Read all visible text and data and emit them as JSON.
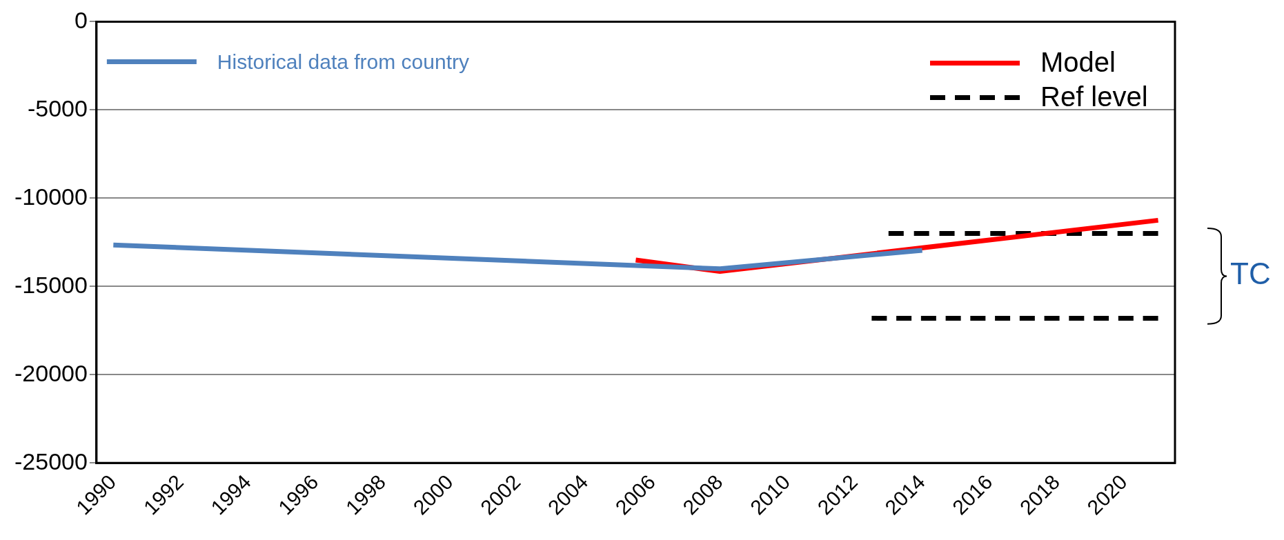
{
  "chart_data": {
    "type": "line",
    "xlim": [
      1989.5,
      2021.5
    ],
    "xticks": [
      1990,
      1992,
      1994,
      1996,
      1998,
      2000,
      2002,
      2004,
      2006,
      2008,
      2010,
      2012,
      2014,
      2016,
      2018,
      2020
    ],
    "ylim": [
      -25000,
      0
    ],
    "yticks": [
      -25000,
      -20000,
      -15000,
      -10000,
      -5000,
      0
    ],
    "grid": "y",
    "legend": "top",
    "line_style": "solid",
    "marker": "none",
    "series": [
      {
        "name": "Historical data from country",
        "color": "#4f81bd",
        "x": [
          1990,
          2008,
          2014
        ],
        "values": [
          -12650,
          -14000,
          -12950
        ]
      },
      {
        "name": "Model",
        "color": "#ff0000",
        "x": [
          2005.5,
          2008,
          2021
        ],
        "values": [
          -13500,
          -14150,
          -11250
        ]
      },
      {
        "name": "Ref level",
        "color": "#000000",
        "line_style": "dashed",
        "x": [
          2013,
          2021
        ],
        "values": [
          -12000,
          -12000
        ]
      },
      {
        "color": "#000000",
        "line_style": "dashed",
        "x": [
          2012.5,
          2021
        ],
        "values": [
          -16800,
          -16800
        ]
      }
    ],
    "annotations": [
      "TC"
    ]
  }
}
